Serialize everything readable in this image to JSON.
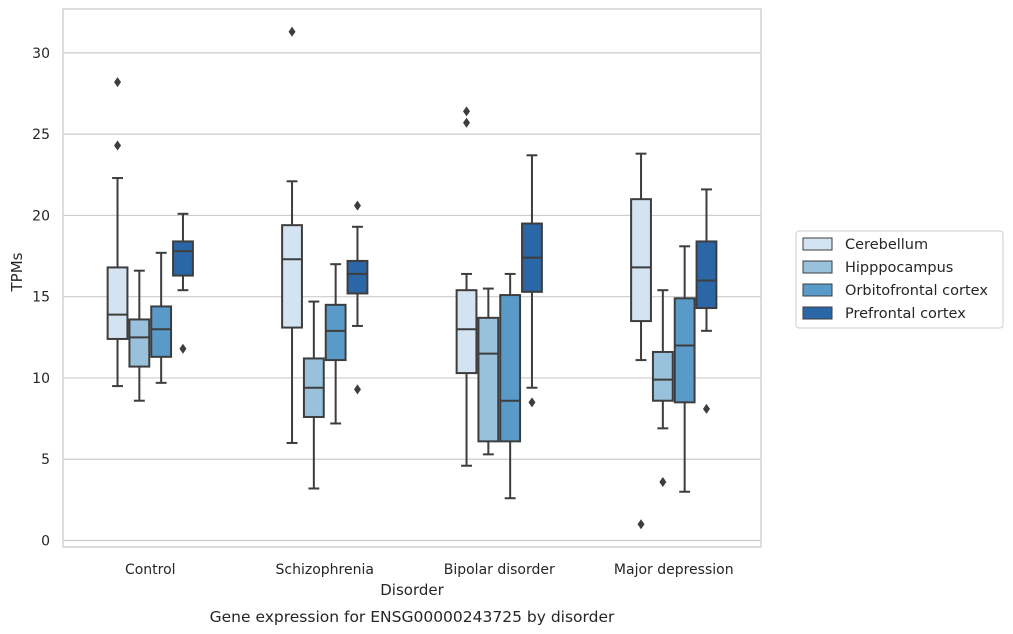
{
  "chart_data": {
    "type": "box",
    "caption": "Gene expression for ENSG00000243725 by disorder",
    "xlabel": "Disorder",
    "ylabel": "TPMs",
    "ylim": [
      -0.4,
      32.7
    ],
    "yticks": [
      0,
      5,
      10,
      15,
      20,
      25,
      30
    ],
    "grid": true,
    "legend_position": "right",
    "categories": [
      "Control",
      "Schizophrenia",
      "Bipolar disorder",
      "Major depression"
    ],
    "series": [
      {
        "name": "Cerebellum",
        "color": "#d4e3f1",
        "boxes": [
          {
            "whislo": 9.5,
            "q1": 12.4,
            "med": 13.9,
            "q3": 16.8,
            "whishi": 22.3,
            "fliers": [
              24.3,
              28.2
            ]
          },
          {
            "whislo": 6.0,
            "q1": 13.1,
            "med": 17.3,
            "q3": 19.4,
            "whishi": 22.1,
            "fliers": [
              31.3
            ]
          },
          {
            "whislo": 4.6,
            "q1": 10.3,
            "med": 13.0,
            "q3": 15.4,
            "whishi": 16.4,
            "fliers": [
              25.7,
              26.4
            ]
          },
          {
            "whislo": 11.1,
            "q1": 13.5,
            "med": 16.8,
            "q3": 21.0,
            "whishi": 23.8,
            "fliers": [
              1.0
            ]
          }
        ]
      },
      {
        "name": "Hipppocampus",
        "color": "#9ac1dc",
        "boxes": [
          {
            "whislo": 8.6,
            "q1": 10.7,
            "med": 12.5,
            "q3": 13.6,
            "whishi": 16.6,
            "fliers": []
          },
          {
            "whislo": 3.2,
            "q1": 7.6,
            "med": 9.4,
            "q3": 11.2,
            "whishi": 14.7,
            "fliers": []
          },
          {
            "whislo": 5.3,
            "q1": 6.1,
            "med": 11.5,
            "q3": 13.7,
            "whishi": 15.5,
            "fliers": []
          },
          {
            "whislo": 6.9,
            "q1": 8.6,
            "med": 9.9,
            "q3": 11.6,
            "whishi": 15.4,
            "fliers": [
              3.6
            ]
          }
        ]
      },
      {
        "name": "Orbitofrontal cortex",
        "color": "#5a9ac9",
        "boxes": [
          {
            "whislo": 9.7,
            "q1": 11.3,
            "med": 13.0,
            "q3": 14.4,
            "whishi": 17.7,
            "fliers": []
          },
          {
            "whislo": 7.2,
            "q1": 11.1,
            "med": 12.9,
            "q3": 14.5,
            "whishi": 17.0,
            "fliers": []
          },
          {
            "whislo": 2.6,
            "q1": 6.1,
            "med": 8.6,
            "q3": 15.1,
            "whishi": 16.4,
            "fliers": []
          },
          {
            "whislo": 3.0,
            "q1": 8.5,
            "med": 12.0,
            "q3": 14.9,
            "whishi": 18.1,
            "fliers": []
          }
        ]
      },
      {
        "name": "Prefrontal cortex",
        "color": "#2b67a7",
        "boxes": [
          {
            "whislo": 15.4,
            "q1": 16.3,
            "med": 17.8,
            "q3": 18.4,
            "whishi": 20.1,
            "fliers": [
              11.8
            ]
          },
          {
            "whislo": 13.2,
            "q1": 15.2,
            "med": 16.4,
            "q3": 17.2,
            "whishi": 19.3,
            "fliers": [
              9.3,
              20.6
            ]
          },
          {
            "whislo": 9.4,
            "q1": 15.3,
            "med": 17.4,
            "q3": 19.5,
            "whishi": 23.7,
            "fliers": [
              8.5
            ]
          },
          {
            "whislo": 12.9,
            "q1": 14.3,
            "med": 16.0,
            "q3": 18.4,
            "whishi": 21.6,
            "fliers": [
              8.1
            ]
          }
        ]
      }
    ]
  }
}
